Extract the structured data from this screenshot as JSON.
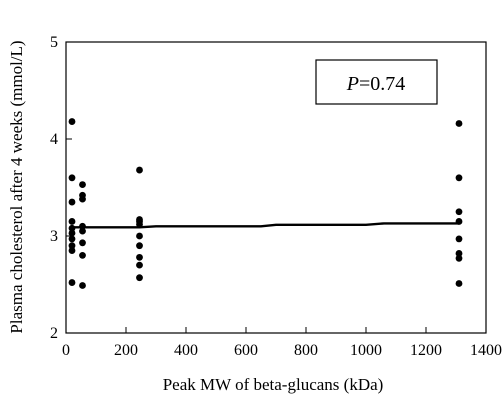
{
  "chart_data": {
    "type": "scatter",
    "xlabel": "Peak MW of beta-glucans (kDa)",
    "ylabel": "Plasma cholesterol after 4 weeks (mmol/L)",
    "xlim": [
      0,
      1400
    ],
    "ylim": [
      2,
      5
    ],
    "x_ticks": [
      0,
      200,
      400,
      600,
      800,
      1000,
      1200,
      1400
    ],
    "y_ticks": [
      2,
      3,
      4,
      5
    ],
    "grid": false,
    "annotation": {
      "p_label": "P",
      "p_value": "=0.74"
    },
    "points": [
      {
        "x": 20,
        "y": 4.18
      },
      {
        "x": 20,
        "y": 3.6
      },
      {
        "x": 20,
        "y": 3.35
      },
      {
        "x": 20,
        "y": 3.15
      },
      {
        "x": 20,
        "y": 3.08
      },
      {
        "x": 20,
        "y": 3.03
      },
      {
        "x": 20,
        "y": 2.97
      },
      {
        "x": 20,
        "y": 2.9
      },
      {
        "x": 20,
        "y": 2.85
      },
      {
        "x": 20,
        "y": 2.52
      },
      {
        "x": 55,
        "y": 3.53
      },
      {
        "x": 55,
        "y": 3.42
      },
      {
        "x": 55,
        "y": 3.38
      },
      {
        "x": 55,
        "y": 3.1
      },
      {
        "x": 55,
        "y": 3.05
      },
      {
        "x": 55,
        "y": 2.93
      },
      {
        "x": 55,
        "y": 2.8
      },
      {
        "x": 55,
        "y": 2.49
      },
      {
        "x": 245,
        "y": 3.68
      },
      {
        "x": 245,
        "y": 3.17
      },
      {
        "x": 245,
        "y": 3.15
      },
      {
        "x": 245,
        "y": 3.12
      },
      {
        "x": 245,
        "y": 3.0
      },
      {
        "x": 245,
        "y": 2.9
      },
      {
        "x": 245,
        "y": 2.78
      },
      {
        "x": 245,
        "y": 2.7
      },
      {
        "x": 245,
        "y": 2.57
      },
      {
        "x": 1310,
        "y": 4.16
      },
      {
        "x": 1310,
        "y": 3.6
      },
      {
        "x": 1310,
        "y": 3.25
      },
      {
        "x": 1310,
        "y": 3.15
      },
      {
        "x": 1310,
        "y": 2.97
      },
      {
        "x": 1310,
        "y": 2.82
      },
      {
        "x": 1310,
        "y": 2.77
      },
      {
        "x": 1310,
        "y": 2.51
      }
    ],
    "trend_line": [
      {
        "x": 15,
        "y": 3.09
      },
      {
        "x": 245,
        "y": 3.09
      },
      {
        "x": 300,
        "y": 3.1
      },
      {
        "x": 650,
        "y": 3.1
      },
      {
        "x": 700,
        "y": 3.115
      },
      {
        "x": 1000,
        "y": 3.115
      },
      {
        "x": 1060,
        "y": 3.13
      },
      {
        "x": 1310,
        "y": 3.13
      }
    ]
  }
}
